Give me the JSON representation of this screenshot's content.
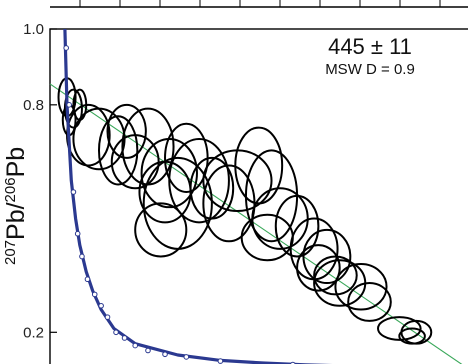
{
  "chart_data": {
    "type": "scatter",
    "title": "",
    "xlabel": "",
    "ylabel": {
      "sup1": "207",
      "base1": "Pb/",
      "sup2": "206",
      "base2": "Pb"
    },
    "ylim": [
      0.09,
      1.0
    ],
    "xlim": [
      0.0,
      10.0
    ],
    "y_ticks": [
      "1.0",
      "0.8",
      "0.2"
    ],
    "y_tick_values": [
      1.0,
      0.8,
      0.2
    ],
    "annotation": {
      "age": "445 ± 11",
      "mswd": "MSW D = 0.9"
    },
    "colors": {
      "concordia": "#2b3990",
      "regression": "#3aa85a",
      "ellipse": "#000000",
      "axis": "#000000"
    },
    "concordia_marker_color": "#ffffff",
    "regression": {
      "x": [
        0.0,
        10.0
      ],
      "y": [
        0.855,
        0.09
      ]
    },
    "concordia": {
      "x": [
        0.35,
        0.4,
        0.5,
        0.6,
        0.7,
        0.85,
        1.0,
        1.2,
        1.5,
        2.0,
        3.0,
        4.0,
        5.0,
        6.0,
        7.0,
        8.0,
        9.0,
        10.0
      ],
      "y": [
        1.0,
        0.8,
        0.6,
        0.5,
        0.43,
        0.36,
        0.31,
        0.26,
        0.21,
        0.17,
        0.14,
        0.126,
        0.119,
        0.114,
        0.111,
        0.108,
        0.106,
        0.104
      ]
    },
    "concordia_markers": {
      "x": [
        0.38,
        0.45,
        0.55,
        0.65,
        0.75,
        0.88,
        1.05,
        1.2,
        1.35,
        1.55,
        1.75,
        2.0,
        2.3,
        2.7,
        3.2,
        4.0,
        5.7
      ],
      "y": [
        0.95,
        0.8,
        0.57,
        0.46,
        0.4,
        0.34,
        0.3,
        0.27,
        0.24,
        0.2,
        0.185,
        0.165,
        0.152,
        0.142,
        0.135,
        0.124,
        0.115
      ]
    },
    "ellipses": {
      "x": [
        0.4,
        0.55,
        0.7,
        0.45,
        0.9,
        1.15,
        1.6,
        1.8,
        2.3,
        2.8,
        3.2,
        2.7,
        3.5,
        3.8,
        4.4,
        4.2,
        3.0,
        2.0,
        5.2,
        5.4,
        5.1,
        5.8,
        6.2,
        6.3,
        6.5,
        6.8,
        6.7,
        7.3,
        7.5,
        8.2,
        8.6,
        8.5,
        4.9,
        2.6
      ],
      "y": [
        0.82,
        0.79,
        0.8,
        0.76,
        0.72,
        0.71,
        0.68,
        0.73,
        0.69,
        0.62,
        0.66,
        0.57,
        0.6,
        0.58,
        0.6,
        0.54,
        0.54,
        0.65,
        0.56,
        0.5,
        0.45,
        0.48,
        0.42,
        0.37,
        0.4,
        0.33,
        0.35,
        0.32,
        0.28,
        0.21,
        0.2,
        0.19,
        0.64,
        0.47
      ],
      "rx": [
        0.2,
        0.2,
        0.15,
        0.15,
        0.5,
        0.6,
        0.45,
        0.45,
        0.6,
        0.65,
        0.5,
        0.6,
        0.7,
        0.5,
        0.8,
        0.6,
        0.8,
        0.55,
        0.6,
        0.65,
        0.6,
        0.5,
        0.55,
        0.5,
        0.55,
        0.6,
        0.5,
        0.6,
        0.5,
        0.5,
        0.35,
        0.3,
        0.55,
        0.6
      ],
      "ry": [
        0.05,
        0.05,
        0.04,
        0.04,
        0.08,
        0.08,
        0.09,
        0.07,
        0.1,
        0.09,
        0.09,
        0.08,
        0.11,
        0.08,
        0.08,
        0.1,
        0.12,
        0.07,
        0.12,
        0.08,
        0.06,
        0.08,
        0.08,
        0.06,
        0.07,
        0.06,
        0.05,
        0.06,
        0.05,
        0.03,
        0.03,
        0.02,
        0.1,
        0.07
      ]
    }
  }
}
